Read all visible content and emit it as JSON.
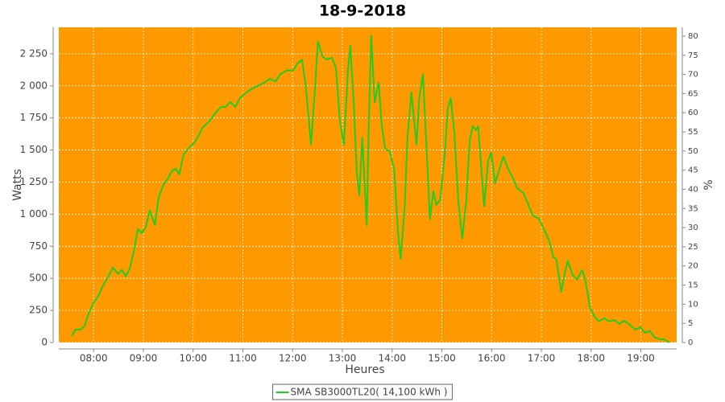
{
  "chart_data": {
    "type": "line",
    "title": "18-9-2018",
    "x_label": "Heures",
    "y_label": "Watts",
    "y2_label": "%",
    "background": "#ff9900",
    "grid": true,
    "legend": "bottom",
    "xlim": [
      7.3,
      19.72
    ],
    "xticks": [
      {
        "value": 8,
        "label": "08:00"
      },
      {
        "value": 9,
        "label": "09:00"
      },
      {
        "value": 10,
        "label": "10:00"
      },
      {
        "value": 11,
        "label": "11:00"
      },
      {
        "value": 12,
        "label": "12:00"
      },
      {
        "value": 13,
        "label": "13:00"
      },
      {
        "value": 14,
        "label": "14:00"
      },
      {
        "value": 15,
        "label": "15:00"
      },
      {
        "value": 16,
        "label": "16:00"
      },
      {
        "value": 17,
        "label": "17:00"
      },
      {
        "value": 18,
        "label": "18:00"
      },
      {
        "value": 19,
        "label": "19:00"
      }
    ],
    "ylim": [
      0,
      2456
    ],
    "yticks": [
      0,
      250,
      500,
      750,
      {
        "value": 1000,
        "label": "1 000"
      },
      {
        "value": 1250,
        "label": "1 250"
      },
      {
        "value": 1500,
        "label": "1 500"
      },
      {
        "value": 1750,
        "label": "1 750"
      },
      {
        "value": 2000,
        "label": "2 000"
      },
      {
        "value": 2250,
        "label": "2 250"
      }
    ],
    "y2lim": [
      0,
      82.3
    ],
    "y2ticks": [
      0,
      5,
      10,
      15,
      20,
      25,
      30,
      35,
      40,
      45,
      50,
      55,
      60,
      65,
      70,
      75,
      80
    ],
    "x": [
      7.56,
      7.63,
      7.74,
      7.82,
      7.9,
      8.0,
      8.1,
      8.19,
      8.29,
      8.39,
      8.49,
      8.57,
      8.65,
      8.73,
      8.81,
      8.89,
      8.97,
      9.05,
      9.13,
      9.23,
      9.31,
      9.41,
      9.49,
      9.57,
      9.65,
      9.72,
      9.81,
      9.93,
      10.02,
      10.1,
      10.2,
      10.33,
      10.46,
      10.56,
      10.65,
      10.75,
      10.85,
      10.94,
      11.06,
      11.17,
      11.3,
      11.43,
      11.54,
      11.66,
      11.75,
      11.88,
      12.01,
      12.09,
      12.19,
      12.27,
      12.37,
      12.45,
      12.51,
      12.6,
      12.68,
      12.79,
      12.87,
      12.95,
      13.03,
      13.11,
      13.16,
      13.23,
      13.29,
      13.34,
      13.4,
      13.49,
      13.53,
      13.58,
      13.65,
      13.73,
      13.79,
      13.86,
      13.95,
      14.04,
      14.12,
      14.17,
      14.25,
      14.31,
      14.39,
      14.49,
      14.55,
      14.62,
      14.68,
      14.76,
      14.83,
      14.89,
      14.97,
      15.06,
      15.12,
      15.18,
      15.25,
      15.33,
      15.41,
      15.49,
      15.56,
      15.62,
      15.69,
      15.73,
      15.8,
      15.85,
      15.93,
      15.99,
      16.07,
      16.16,
      16.24,
      16.33,
      16.43,
      16.51,
      16.64,
      16.74,
      16.83,
      16.95,
      17.05,
      17.16,
      17.24,
      17.3,
      17.4,
      17.47,
      17.53,
      17.63,
      17.72,
      17.82,
      17.89,
      17.98,
      18.08,
      18.16,
      18.26,
      18.36,
      18.47,
      18.57,
      18.66,
      18.76,
      18.89,
      18.99,
      19.08,
      19.18,
      19.28,
      19.38,
      19.47,
      19.57
    ],
    "series": [
      {
        "name": "SMA SB3000TL20( 14,100 kWh )",
        "color": "#22cc22",
        "values": [
          50,
          100,
          100,
          130,
          225,
          310,
          365,
          445,
          510,
          585,
          535,
          565,
          515,
          580,
          715,
          885,
          850,
          905,
          1030,
          915,
          1135,
          1235,
          1275,
          1335,
          1355,
          1310,
          1465,
          1525,
          1555,
          1605,
          1680,
          1725,
          1795,
          1835,
          1835,
          1875,
          1835,
          1905,
          1945,
          1975,
          2000,
          2025,
          2055,
          2035,
          2090,
          2120,
          2120,
          2170,
          2205,
          1980,
          1540,
          1980,
          2345,
          2230,
          2205,
          2220,
          2140,
          1730,
          1540,
          2105,
          2315,
          1855,
          1325,
          1145,
          1595,
          915,
          1670,
          2390,
          1870,
          2025,
          1700,
          1510,
          1490,
          1355,
          850,
          650,
          1040,
          1605,
          1950,
          1540,
          1920,
          2090,
          1605,
          960,
          1180,
          1070,
          1115,
          1480,
          1825,
          1905,
          1635,
          1105,
          810,
          1105,
          1575,
          1685,
          1655,
          1685,
          1325,
          1060,
          1415,
          1480,
          1240,
          1355,
          1450,
          1355,
          1280,
          1205,
          1165,
          1070,
          990,
          965,
          885,
          790,
          665,
          650,
          395,
          540,
          635,
          525,
          490,
          565,
          475,
          270,
          195,
          165,
          190,
          165,
          175,
          145,
          170,
          145,
          100,
          120,
          75,
          90,
          40,
          25,
          25,
          0
        ]
      }
    ]
  }
}
